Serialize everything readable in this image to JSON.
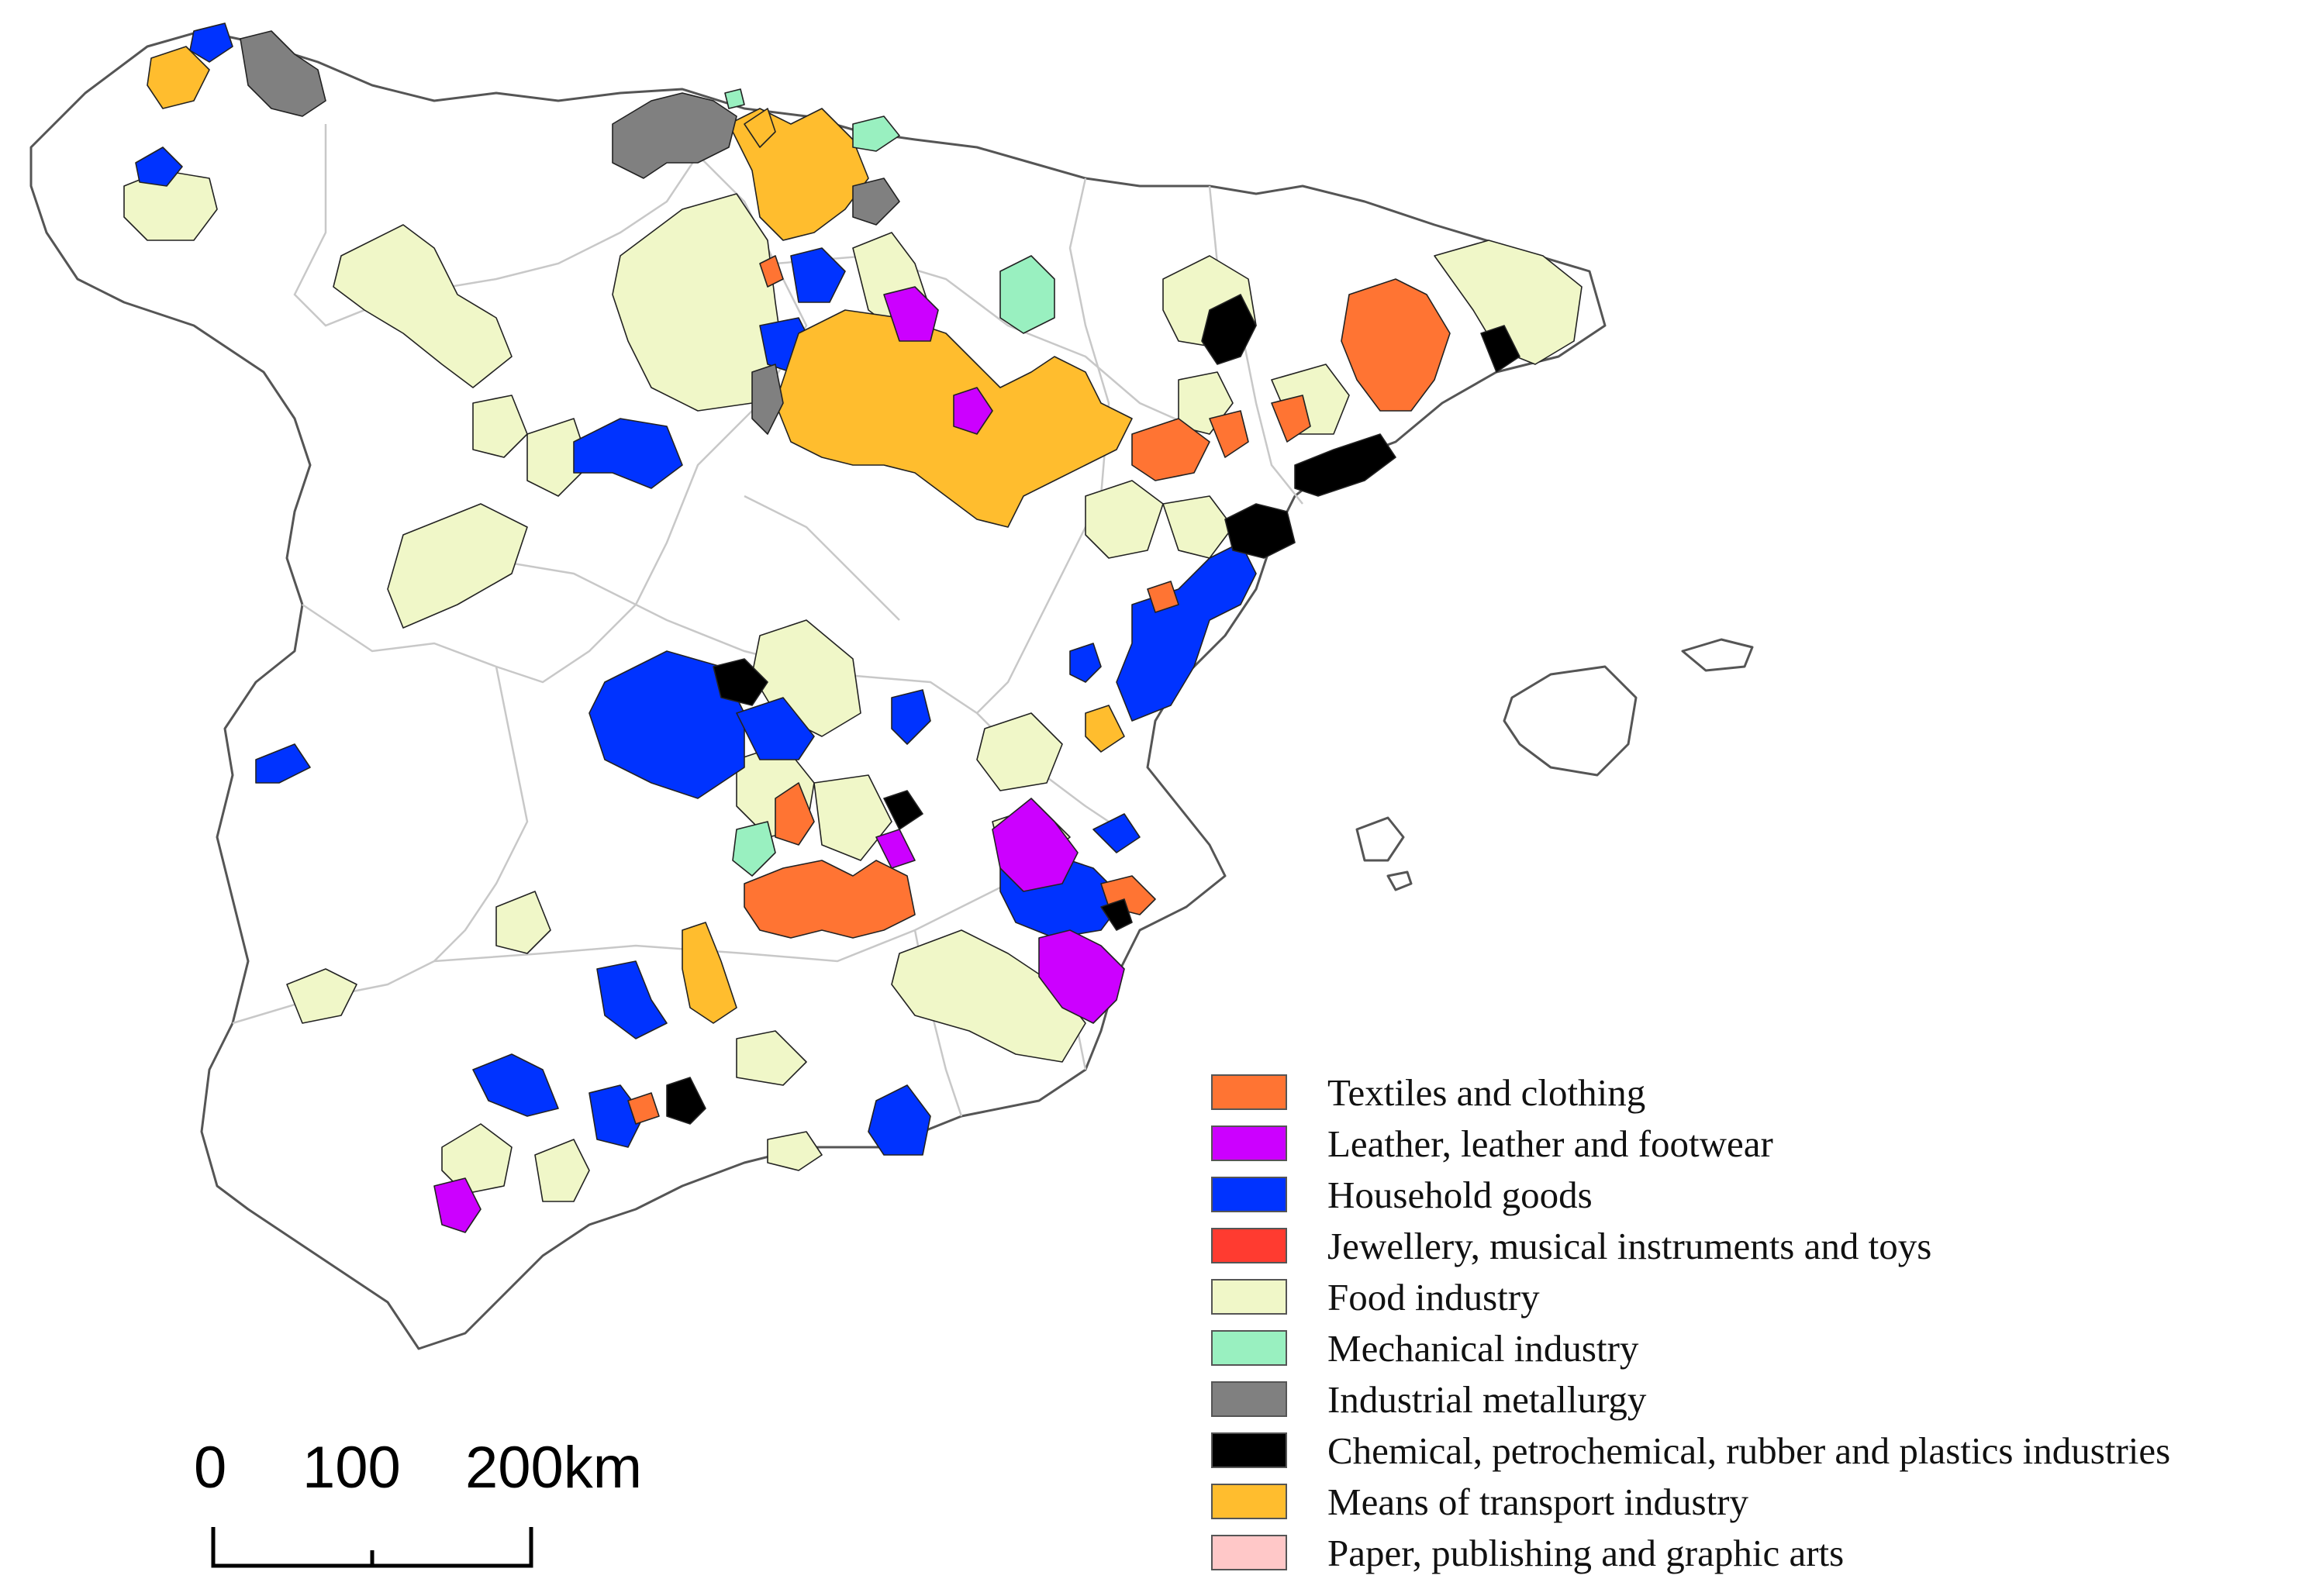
{
  "colors": {
    "textiles": "#ff7433",
    "leather": "#cc00ff",
    "household": "#0033ff",
    "jewellery": "#ff3b30",
    "food": "#f0f7c8",
    "mechanical": "#99f0c0",
    "metallurgy": "#808080",
    "chemical": "#000000",
    "transport": "#ffbd2e",
    "paper": "#ffc8c8"
  },
  "legend": {
    "items": [
      {
        "key": "textiles",
        "label": "Textiles and clothing"
      },
      {
        "key": "leather",
        "label": "Leather, leather and footwear"
      },
      {
        "key": "household",
        "label": "Household goods"
      },
      {
        "key": "jewellery",
        "label": "Jewellery, musical instruments and toys"
      },
      {
        "key": "food",
        "label": "Food industry"
      },
      {
        "key": "mechanical",
        "label": "Mechanical industry"
      },
      {
        "key": "metallurgy",
        "label": "Industrial metallurgy"
      },
      {
        "key": "chemical",
        "label": "Chemical, petrochemical, rubber and plastics industries"
      },
      {
        "key": "transport",
        "label": "Means of transport industry"
      },
      {
        "key": "paper",
        "label": "Paper, publishing and graphic arts"
      }
    ]
  },
  "scale_bar": {
    "tick_0": "0",
    "tick_1": "100",
    "tick_2": "200km"
  }
}
